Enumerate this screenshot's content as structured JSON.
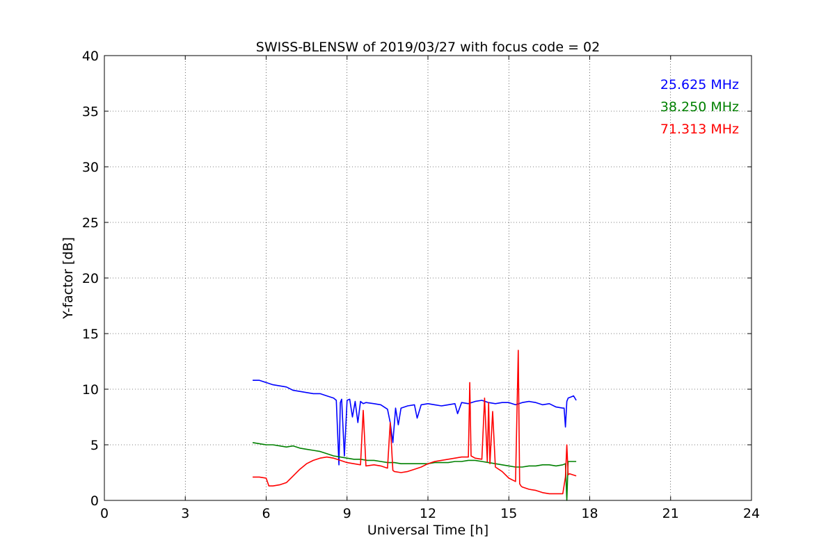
{
  "chart_data": {
    "type": "line",
    "title": "SWISS-BLENSW of 2019/03/27 with focus code = 02",
    "xlabel": "Universal Time [h]",
    "ylabel": "Y-factor [dB]",
    "xlim": [
      0,
      24
    ],
    "ylim": [
      0,
      40
    ],
    "xticks": [
      0,
      3,
      6,
      9,
      12,
      15,
      18,
      21,
      24
    ],
    "yticks": [
      0,
      5,
      10,
      15,
      20,
      25,
      30,
      35,
      40
    ],
    "xtick_labels": [
      "0",
      "3",
      "6",
      "9",
      "12",
      "15",
      "18",
      "21",
      "24"
    ],
    "ytick_labels": [
      "0",
      "5",
      "10",
      "15",
      "20",
      "25",
      "30",
      "35",
      "40"
    ],
    "grid": true,
    "legend_position": "top-right",
    "series": [
      {
        "name": "25.625 MHz",
        "color": "#0000ff",
        "x": [
          5.5,
          5.75,
          6.0,
          6.25,
          6.5,
          6.75,
          7.0,
          7.25,
          7.5,
          7.75,
          8.0,
          8.25,
          8.5,
          8.6,
          8.7,
          8.75,
          8.8,
          8.9,
          9.0,
          9.1,
          9.2,
          9.3,
          9.4,
          9.5,
          9.6,
          9.7,
          10.0,
          10.25,
          10.5,
          10.6,
          10.7,
          10.8,
          10.9,
          11.0,
          11.25,
          11.5,
          11.6,
          11.75,
          12.0,
          12.25,
          12.5,
          12.75,
          13.0,
          13.1,
          13.25,
          13.5,
          13.75,
          14.0,
          14.25,
          14.5,
          14.75,
          15.0,
          15.25,
          15.5,
          15.75,
          16.0,
          16.25,
          16.5,
          16.75,
          17.0,
          17.05,
          17.1,
          17.15,
          17.2,
          17.3,
          17.4,
          17.5
        ],
        "y": [
          10.8,
          10.8,
          10.6,
          10.4,
          10.3,
          10.2,
          9.9,
          9.8,
          9.7,
          9.6,
          9.6,
          9.4,
          9.2,
          9.0,
          3.2,
          8.8,
          9.1,
          4.0,
          9.0,
          9.1,
          7.5,
          8.9,
          7.0,
          8.9,
          8.7,
          8.8,
          8.7,
          8.6,
          8.2,
          7.0,
          5.2,
          8.3,
          6.8,
          8.3,
          8.5,
          8.6,
          7.4,
          8.6,
          8.7,
          8.6,
          8.5,
          8.6,
          8.7,
          7.8,
          8.8,
          8.7,
          8.9,
          9.0,
          8.8,
          8.7,
          8.8,
          8.8,
          8.6,
          8.8,
          8.9,
          8.8,
          8.6,
          8.7,
          8.4,
          8.3,
          8.3,
          6.6,
          8.9,
          9.2,
          9.3,
          9.4,
          9.0
        ]
      },
      {
        "name": "38.250 MHz",
        "color": "#008000",
        "x": [
          5.5,
          5.75,
          6.0,
          6.25,
          6.5,
          6.75,
          7.0,
          7.25,
          7.5,
          7.75,
          8.0,
          8.25,
          8.5,
          8.75,
          9.0,
          9.25,
          9.5,
          9.75,
          10.0,
          10.25,
          10.5,
          10.75,
          11.0,
          11.25,
          11.5,
          11.75,
          12.0,
          12.25,
          12.5,
          12.75,
          13.0,
          13.25,
          13.5,
          13.75,
          14.0,
          14.25,
          14.5,
          14.75,
          15.0,
          15.25,
          15.5,
          15.75,
          16.0,
          16.25,
          16.5,
          16.75,
          17.0,
          17.1,
          17.15,
          17.2,
          17.25,
          17.5
        ],
        "y": [
          5.2,
          5.1,
          5.0,
          5.0,
          4.9,
          4.8,
          4.9,
          4.7,
          4.6,
          4.5,
          4.4,
          4.2,
          4.0,
          3.9,
          3.8,
          3.7,
          3.7,
          3.6,
          3.6,
          3.5,
          3.4,
          3.4,
          3.3,
          3.3,
          3.3,
          3.3,
          3.3,
          3.4,
          3.4,
          3.4,
          3.5,
          3.5,
          3.6,
          3.6,
          3.5,
          3.4,
          3.3,
          3.2,
          3.1,
          3.0,
          3.0,
          3.1,
          3.1,
          3.2,
          3.2,
          3.1,
          3.2,
          3.3,
          0.0,
          3.5,
          3.5,
          3.5
        ]
      },
      {
        "name": "71.313 MHz",
        "color": "#ff0000",
        "x": [
          5.5,
          5.75,
          6.0,
          6.1,
          6.25,
          6.5,
          6.75,
          7.0,
          7.25,
          7.5,
          7.75,
          8.0,
          8.25,
          8.5,
          8.75,
          9.0,
          9.25,
          9.5,
          9.6,
          9.7,
          10.0,
          10.25,
          10.5,
          10.6,
          10.7,
          10.75,
          11.0,
          11.25,
          11.5,
          11.75,
          12.0,
          12.25,
          12.5,
          12.75,
          13.0,
          13.25,
          13.5,
          13.55,
          13.6,
          13.75,
          14.0,
          14.1,
          14.2,
          14.25,
          14.3,
          14.4,
          14.5,
          14.75,
          15.0,
          15.25,
          15.35,
          15.4,
          15.45,
          15.5,
          15.75,
          16.0,
          16.25,
          16.5,
          16.75,
          17.0,
          17.1,
          17.15,
          17.2,
          17.25,
          17.5
        ],
        "y": [
          2.1,
          2.1,
          2.0,
          1.3,
          1.3,
          1.4,
          1.6,
          2.2,
          2.8,
          3.3,
          3.6,
          3.8,
          3.9,
          3.8,
          3.6,
          3.4,
          3.3,
          3.2,
          8.1,
          3.1,
          3.2,
          3.1,
          2.9,
          7.0,
          2.7,
          2.6,
          2.5,
          2.6,
          2.8,
          3.0,
          3.3,
          3.5,
          3.6,
          3.7,
          3.8,
          3.9,
          3.9,
          10.6,
          4.0,
          3.8,
          3.7,
          9.2,
          3.5,
          8.8,
          3.3,
          8.0,
          3.0,
          2.6,
          2.0,
          1.7,
          13.5,
          1.5,
          1.3,
          1.2,
          1.0,
          0.9,
          0.7,
          0.6,
          0.6,
          0.6,
          2.1,
          5.0,
          2.3,
          2.4,
          2.2
        ]
      }
    ]
  }
}
